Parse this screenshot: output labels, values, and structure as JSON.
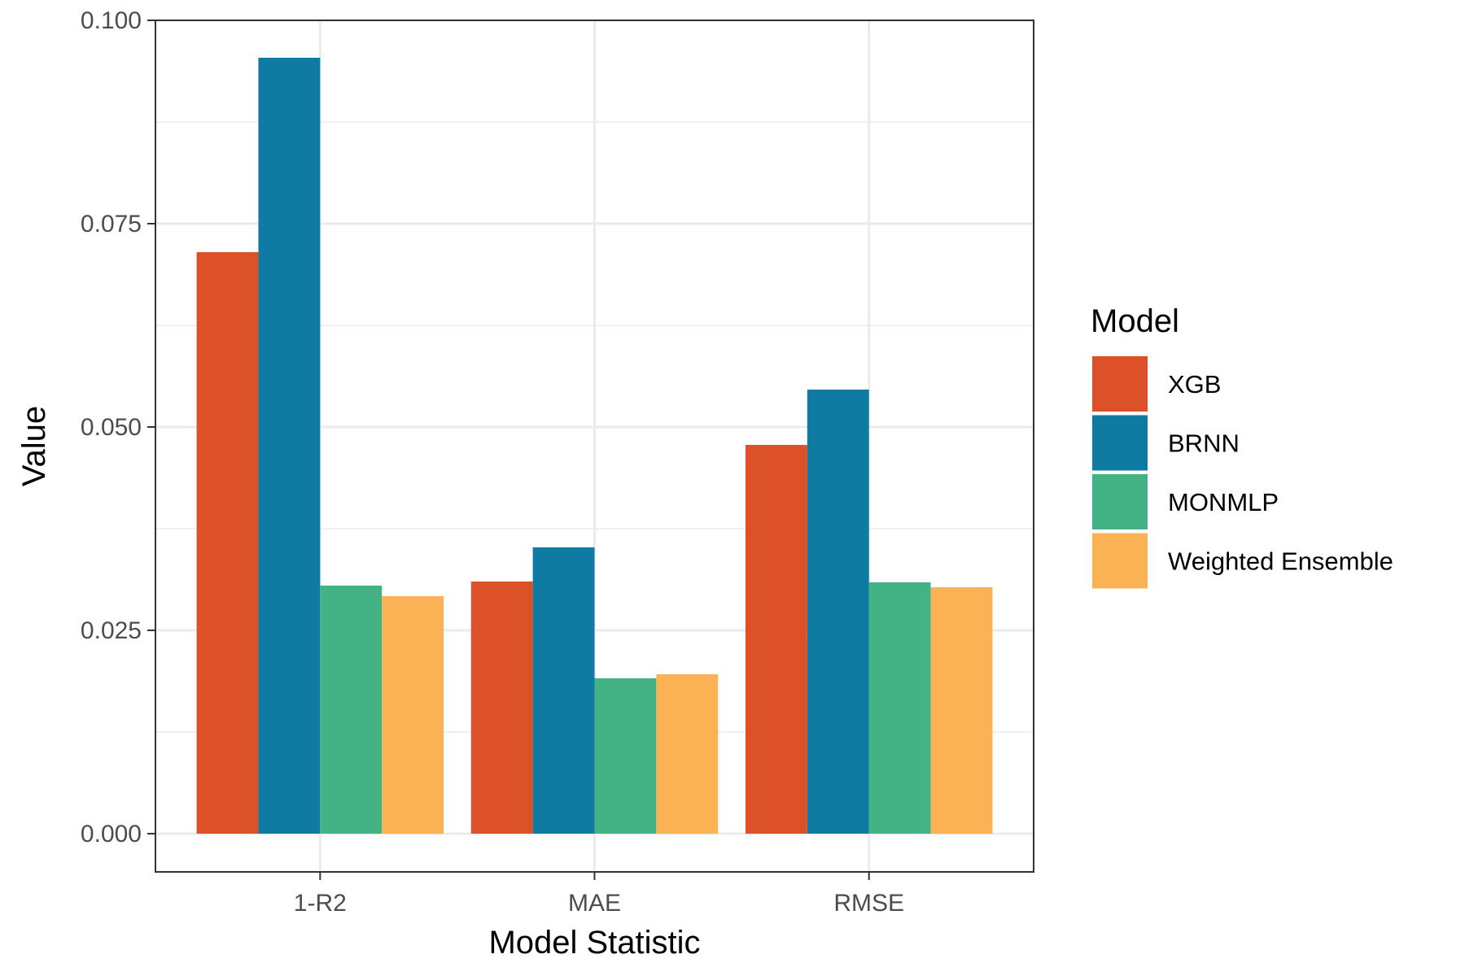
{
  "chart_data": {
    "type": "bar",
    "title": "",
    "xlabel": "Model Statistic",
    "ylabel": "Value",
    "categories": [
      "1-R2",
      "MAE",
      "RMSE"
    ],
    "ylim": [
      -0.0047,
      0.1
    ],
    "yticks": [
      0.0,
      0.025,
      0.05,
      0.075,
      0.1
    ],
    "ytick_labels": [
      "0.000",
      "0.025",
      "0.050",
      "0.075",
      "0.100"
    ],
    "grid": true,
    "legend": {
      "title": "Model",
      "placement": "right"
    },
    "series": [
      {
        "name": "XGB",
        "color": "#DD5129",
        "values": [
          0.0715,
          0.031,
          0.0478
        ]
      },
      {
        "name": "BRNN",
        "color": "#0F7BA2",
        "values": [
          0.0954,
          0.0352,
          0.0546
        ]
      },
      {
        "name": "MONMLP",
        "color": "#43B284",
        "values": [
          0.0305,
          0.0191,
          0.0309
        ]
      },
      {
        "name": "Weighted Ensemble",
        "color": "#FAB255",
        "values": [
          0.0292,
          0.0196,
          0.0303
        ]
      }
    ]
  }
}
